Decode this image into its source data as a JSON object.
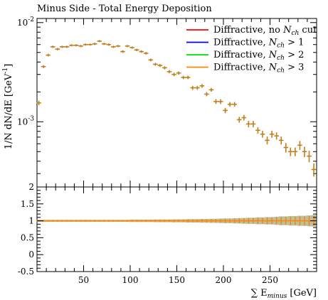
{
  "chart_data": [
    {
      "type": "scatter",
      "title": "Minus Side - Total Energy Deposition",
      "ylabel": "1/N dN/dE [GeV^-1]",
      "yscale": "log",
      "ylim": [
        0.00022,
        0.011
      ],
      "xlim": [
        0,
        300
      ],
      "ytick_labels": [
        "10^-2",
        "10^-3"
      ],
      "ytick_values": [
        0.01,
        0.001
      ],
      "legend_position": "top-right",
      "legend": [
        {
          "label": "Diffractive, no N_ch cut",
          "color": "#ff0000"
        },
        {
          "label": "Diffractive, N_ch > 1",
          "color": "#0000ff"
        },
        {
          "label": "Diffractive, N_ch > 2",
          "color": "#00dd00"
        },
        {
          "label": "Diffractive, N_ch > 3",
          "color": "#ff8800"
        }
      ],
      "marker_color": "#c07e1d",
      "x": [
        2,
        7,
        12,
        17,
        22,
        27,
        32,
        37,
        42,
        47,
        52,
        57,
        62,
        67,
        72,
        77,
        82,
        87,
        92,
        97,
        102,
        107,
        112,
        117,
        122,
        127,
        132,
        137,
        142,
        147,
        152,
        157,
        162,
        167,
        172,
        177,
        182,
        187,
        192,
        197,
        202,
        207,
        212,
        217,
        222,
        227,
        232,
        237,
        242,
        247,
        252,
        257,
        262,
        267,
        272,
        277,
        282,
        287,
        292,
        297
      ],
      "y": [
        0.00155,
        0.0036,
        0.0047,
        0.0057,
        0.0054,
        0.0057,
        0.0057,
        0.0059,
        0.0059,
        0.0058,
        0.006,
        0.006,
        0.0061,
        0.0065,
        0.0061,
        0.006,
        0.0057,
        0.0058,
        0.0051,
        0.0058,
        0.0056,
        0.0053,
        0.0051,
        0.0049,
        0.0042,
        0.0038,
        0.0037,
        0.0035,
        0.0032,
        0.003,
        0.0031,
        0.0028,
        0.0028,
        0.0022,
        0.0022,
        0.0023,
        0.0019,
        0.0021,
        0.0016,
        0.0016,
        0.0013,
        0.0015,
        0.0015,
        0.00105,
        0.0011,
        0.00095,
        0.00095,
        0.00082,
        0.00075,
        0.00065,
        0.00075,
        0.00072,
        0.00065,
        0.00055,
        0.0005,
        0.0005,
        0.00058,
        0.0005,
        0.00045,
        0.00033
      ],
      "yerr": [
        8e-05,
        0.00012,
        0.00014,
        0.00015,
        0.00015,
        0.00015,
        0.00015,
        0.00015,
        0.00015,
        0.00015,
        0.00015,
        0.00015,
        0.00016,
        0.00016,
        0.00016,
        0.00016,
        0.00015,
        0.00015,
        0.00015,
        0.00015,
        0.00015,
        0.00015,
        0.00015,
        0.00015,
        0.00014,
        0.00013,
        0.00013,
        0.00013,
        0.00012,
        0.00012,
        0.00012,
        0.00011,
        0.00011,
        0.0001,
        0.0001,
        0.0001,
        9e-05,
        9e-05,
        9e-05,
        9e-05,
        8e-05,
        8e-05,
        8e-05,
        7e-05,
        7e-05,
        7e-05,
        7e-05,
        6e-05,
        6e-05,
        6e-05,
        6e-05,
        6e-05,
        6e-05,
        6e-05,
        5e-05,
        5e-05,
        6e-05,
        6e-05,
        6e-05,
        5e-05
      ]
    },
    {
      "type": "line",
      "ylim": [
        -0.5,
        2
      ],
      "xlim": [
        0,
        300
      ],
      "xlabel": "∑ E_minus [GeV]",
      "xtick_values": [
        50,
        100,
        150,
        200,
        250
      ],
      "xtick_labels": [
        "50",
        "100",
        "150",
        "200",
        "250"
      ],
      "ytick_values": [
        -0.5,
        0,
        0.5,
        1,
        1.5,
        2
      ],
      "ytick_labels": [
        "-0.5",
        "0",
        "0.5",
        "1",
        "1.5",
        "2"
      ],
      "reference": 1.0,
      "band_color": "#b4ad78",
      "line_color": "#ff8800",
      "band_halfwidth": [
        0.03,
        0.03,
        0.03,
        0.03,
        0.03,
        0.03,
        0.03,
        0.03,
        0.03,
        0.03,
        0.03,
        0.03,
        0.03,
        0.03,
        0.03,
        0.03,
        0.03,
        0.03,
        0.03,
        0.03,
        0.035,
        0.035,
        0.035,
        0.035,
        0.035,
        0.04,
        0.04,
        0.04,
        0.04,
        0.045,
        0.045,
        0.045,
        0.05,
        0.05,
        0.05,
        0.055,
        0.055,
        0.06,
        0.06,
        0.065,
        0.07,
        0.07,
        0.075,
        0.08,
        0.085,
        0.09,
        0.09,
        0.1,
        0.1,
        0.11,
        0.11,
        0.12,
        0.13,
        0.13,
        0.14,
        0.14,
        0.15,
        0.15,
        0.16,
        0.17
      ]
    }
  ]
}
